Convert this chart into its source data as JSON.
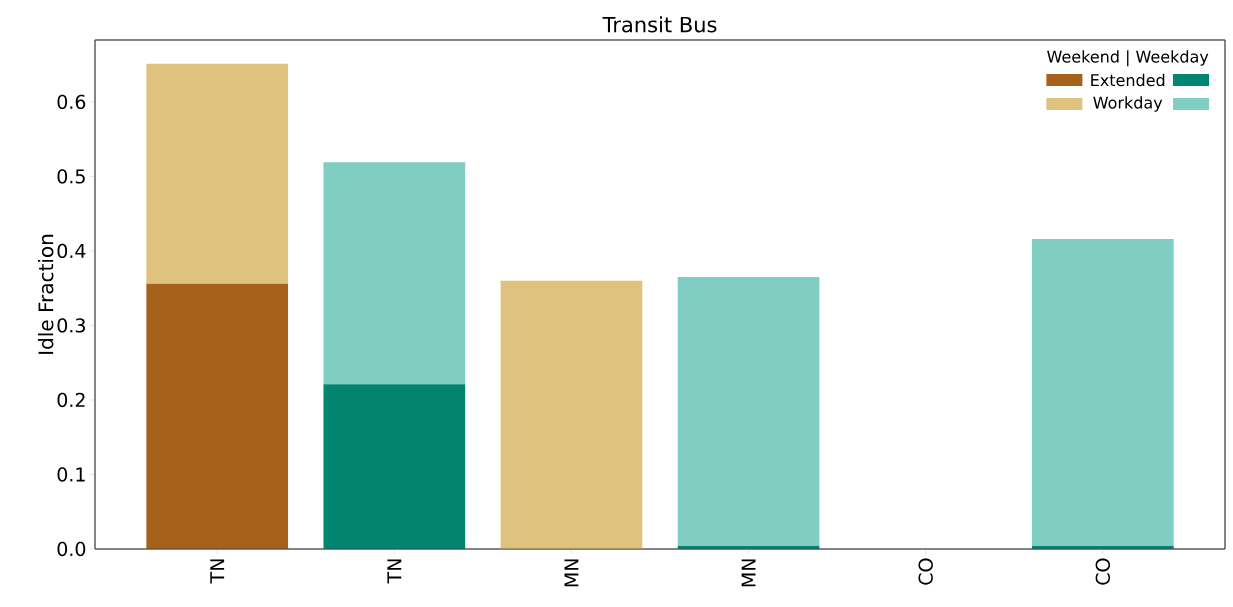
{
  "chart_data": {
    "type": "bar",
    "title": "Transit Bus",
    "ylabel": "Idle Fraction",
    "legend_title": "Weekend | Weekday",
    "categories": [
      "TN",
      "TN",
      "MN",
      "MN",
      "CO",
      "CO"
    ],
    "stacked": true,
    "legend": "top right",
    "ylim": [
      0,
      0.683
    ],
    "yticks": [
      {
        "value": 0,
        "label": "0.0"
      },
      0.1,
      0.2,
      0.3,
      0.4,
      0.5,
      0.6
    ],
    "series": [
      {
        "name": "Extended",
        "colors": [
          "#a6611a",
          "#018571",
          "#a6611a",
          "#018571",
          "#a6611a",
          "#018571"
        ],
        "values": [
          0.356,
          0.221,
          0,
          0.004,
          0,
          0.004
        ]
      },
      {
        "name": "Workday",
        "colors": [
          "#dfc27d",
          "#80cdc1",
          "#dfc27d",
          "#80cdc1",
          "#dfc27d",
          "#80cdc1"
        ],
        "values": [
          0.295,
          0.298,
          0.36,
          0.361,
          0,
          0.412
        ]
      }
    ]
  }
}
